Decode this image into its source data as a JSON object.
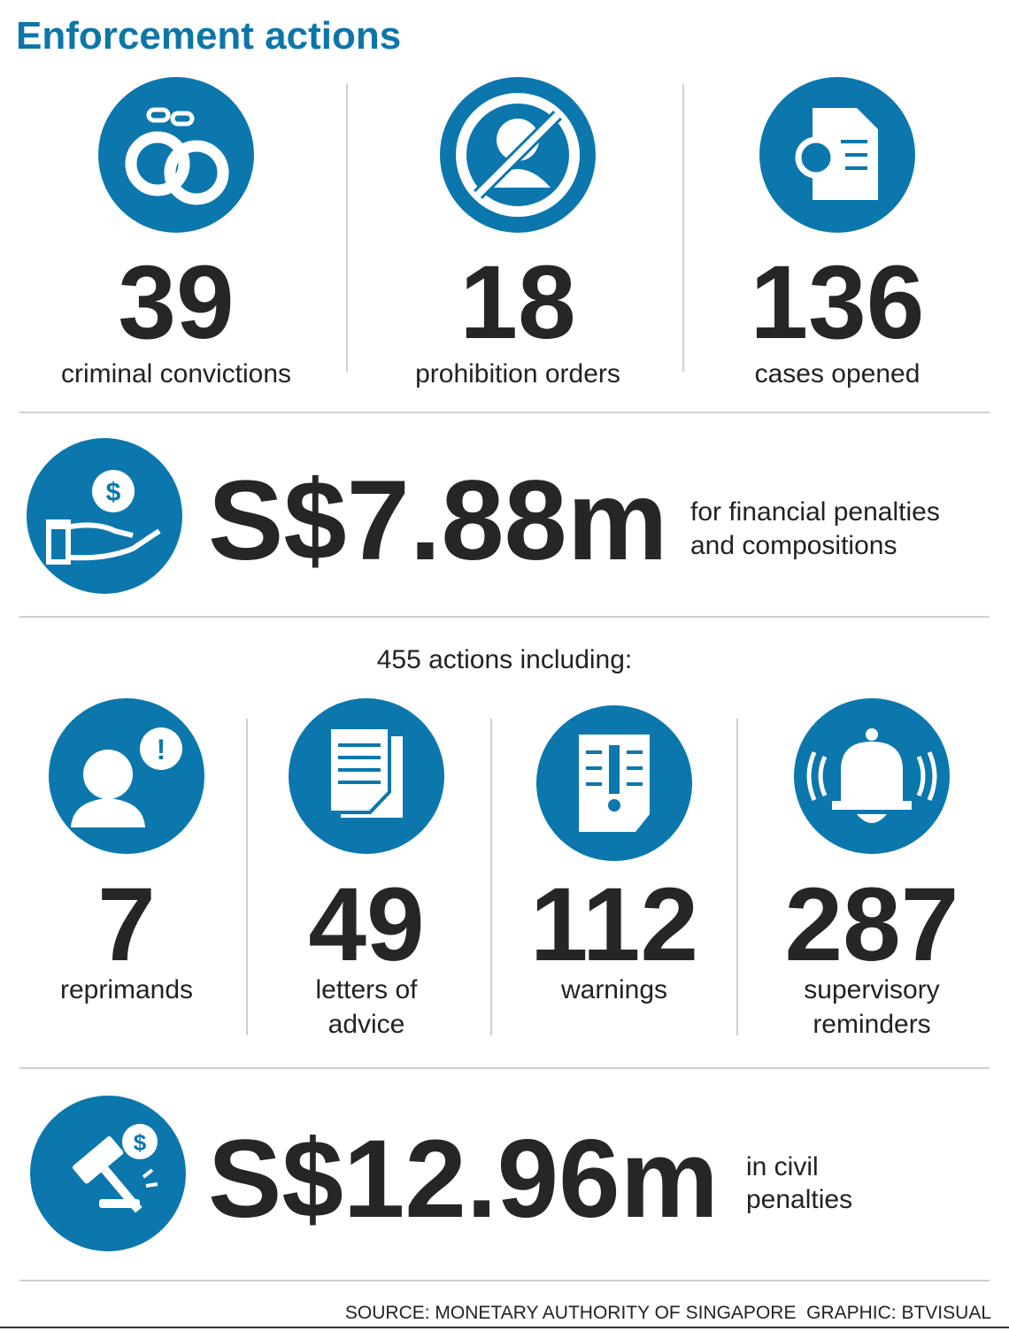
{
  "title": "Enforcement actions",
  "top_stats": [
    {
      "value": 39,
      "label": "criminal convictions"
    },
    {
      "value": 18,
      "label": "prohibition orders"
    },
    {
      "value": 136,
      "label": "cases opened"
    }
  ],
  "financial_penalties": {
    "value": "S$7.88m",
    "label": [
      "for financial penalties",
      "and compositions"
    ]
  },
  "actions_heading": "455 actions including:",
  "actions": [
    {
      "value": 7,
      "label": [
        "reprimands"
      ]
    },
    {
      "value": 49,
      "label": [
        "letters of",
        "advice"
      ]
    },
    {
      "value": 112,
      "label": [
        "warnings"
      ]
    },
    {
      "value": 287,
      "label": [
        "supervisory",
        "reminders"
      ]
    }
  ],
  "civil_penalties": {
    "value": "S$12.96m",
    "label": [
      "in civil",
      "penalties"
    ]
  },
  "source": "SOURCE: MONETARY AUTHORITY OF SINGAPORE  GRAPHIC: BTVISUAL"
}
